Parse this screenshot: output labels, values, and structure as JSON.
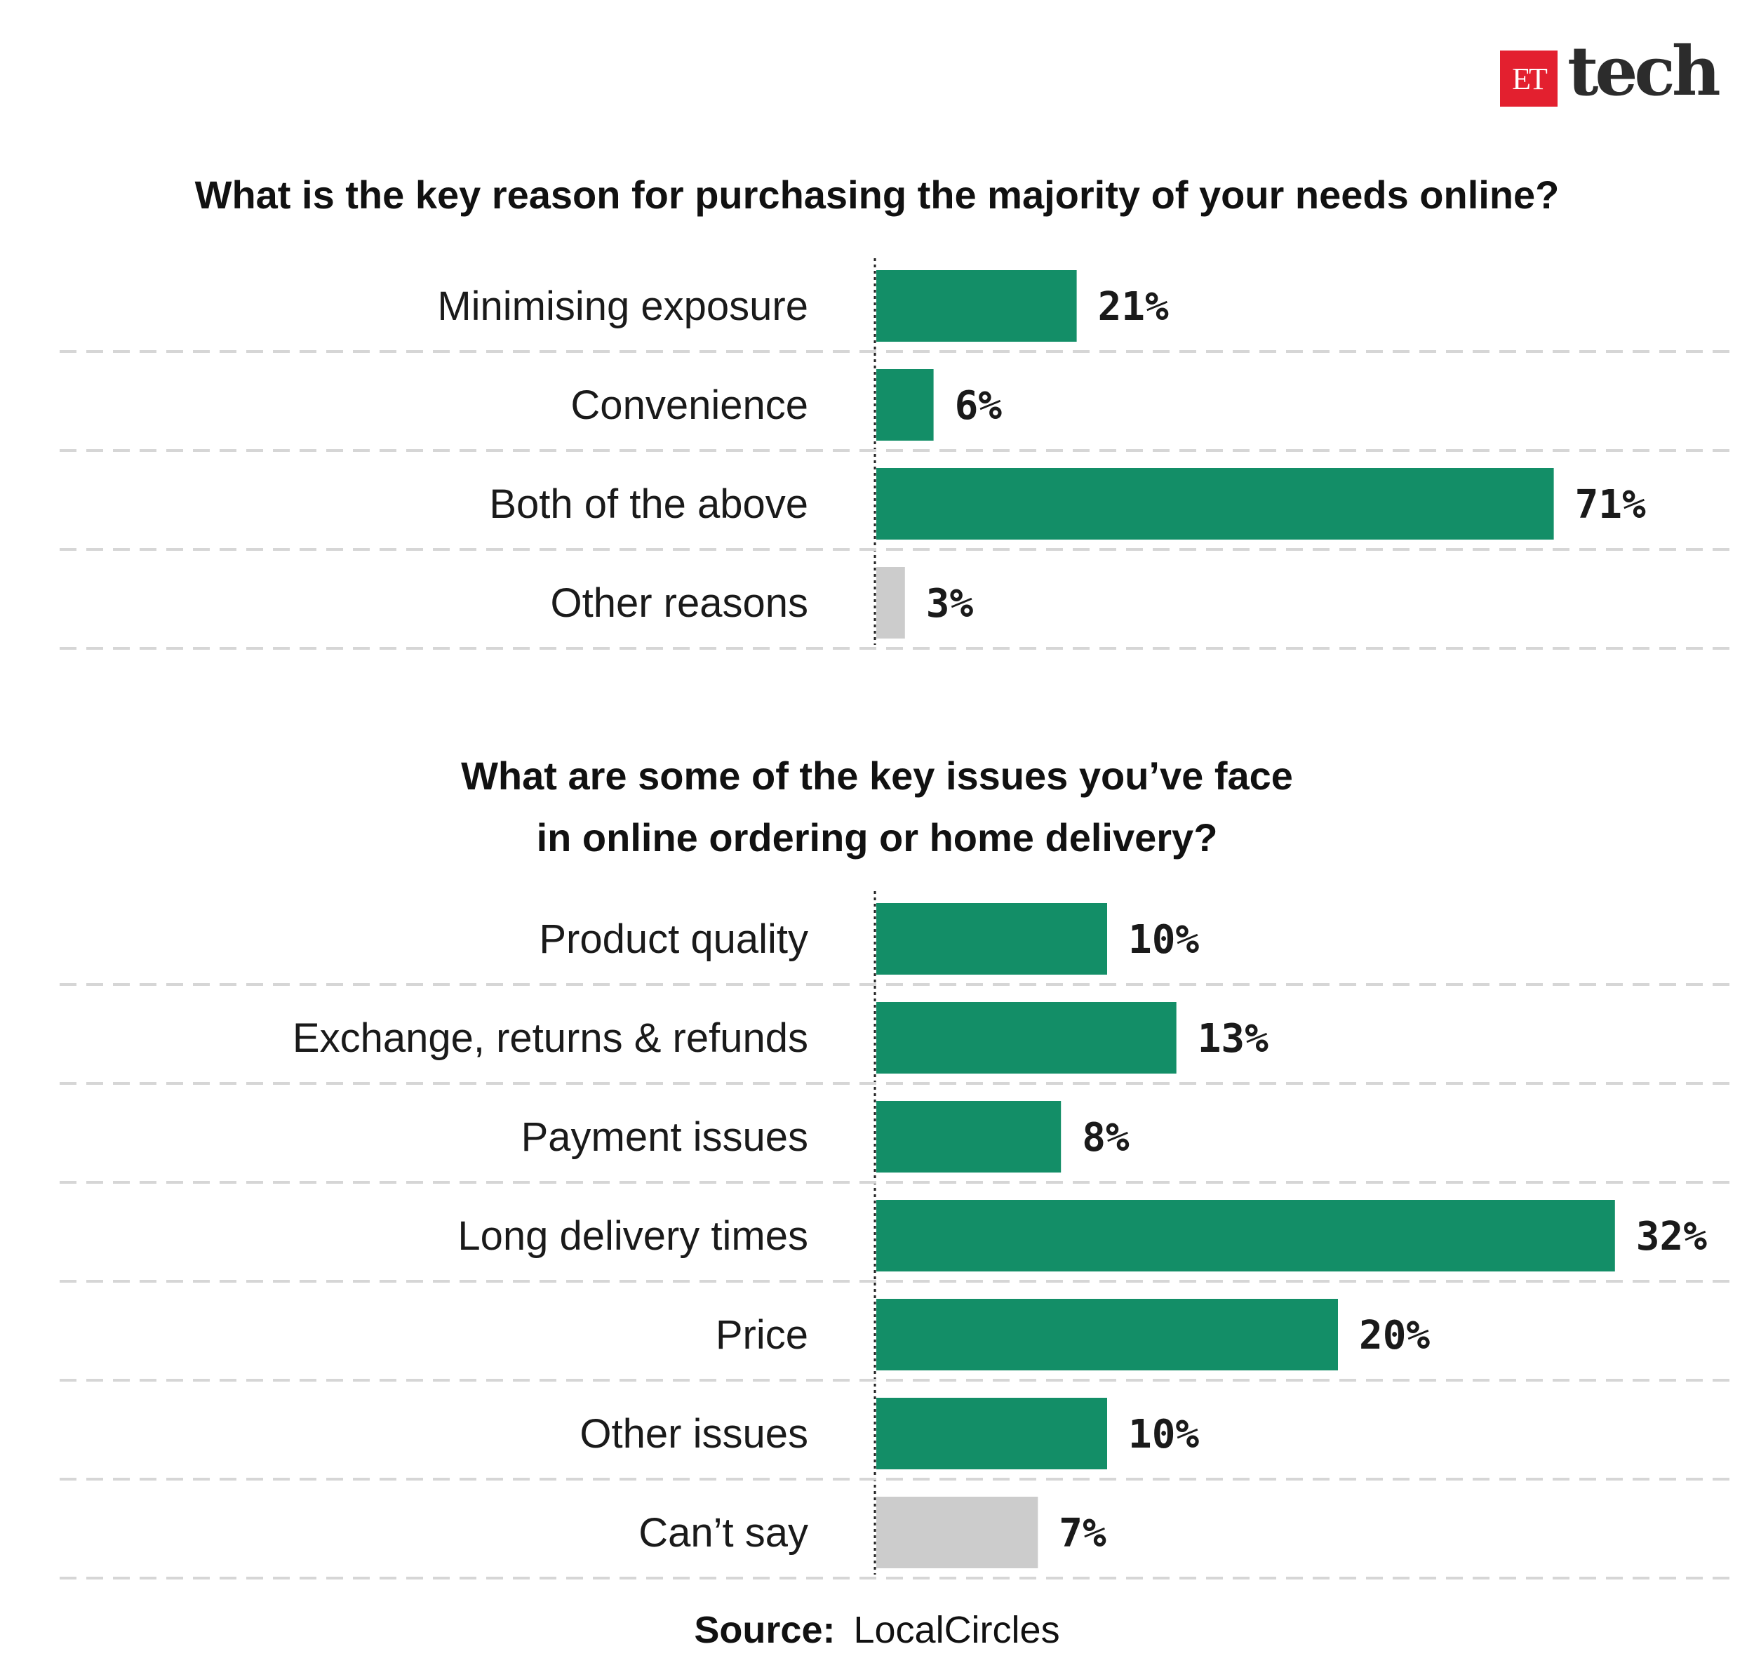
{
  "logo": {
    "et": "ET",
    "tech": "tech"
  },
  "colors": {
    "primary_bar": "#138e67",
    "muted_bar": "#cccccc"
  },
  "chart_data": [
    {
      "type": "bar",
      "orientation": "horizontal",
      "title": "What is the key reason for purchasing the majority of your needs online?",
      "categories": [
        "Minimising exposure",
        "Convenience",
        "Both of the above",
        "Other reasons"
      ],
      "values": [
        21,
        6,
        71,
        3
      ],
      "value_labels": [
        "21%",
        "6%",
        "71%",
        "3%"
      ],
      "unit": "%",
      "muted": [
        false,
        false,
        false,
        true
      ]
    },
    {
      "type": "bar",
      "orientation": "horizontal",
      "title_lines": [
        "What are some of the key issues you’ve face",
        "in online ordering or home delivery?"
      ],
      "categories": [
        "Product quality",
        "Exchange, returns & refunds",
        "Payment issues",
        "Long delivery times",
        "Price",
        "Other issues",
        "Can’t say"
      ],
      "values": [
        10,
        13,
        8,
        32,
        20,
        10,
        7
      ],
      "value_labels": [
        "10%",
        "13%",
        "8%",
        "32%",
        "20%",
        "10%",
        "7%"
      ],
      "unit": "%",
      "muted": [
        false,
        false,
        false,
        false,
        false,
        false,
        true
      ]
    }
  ],
  "source": {
    "label": "Source:",
    "value": "LocalCircles"
  }
}
